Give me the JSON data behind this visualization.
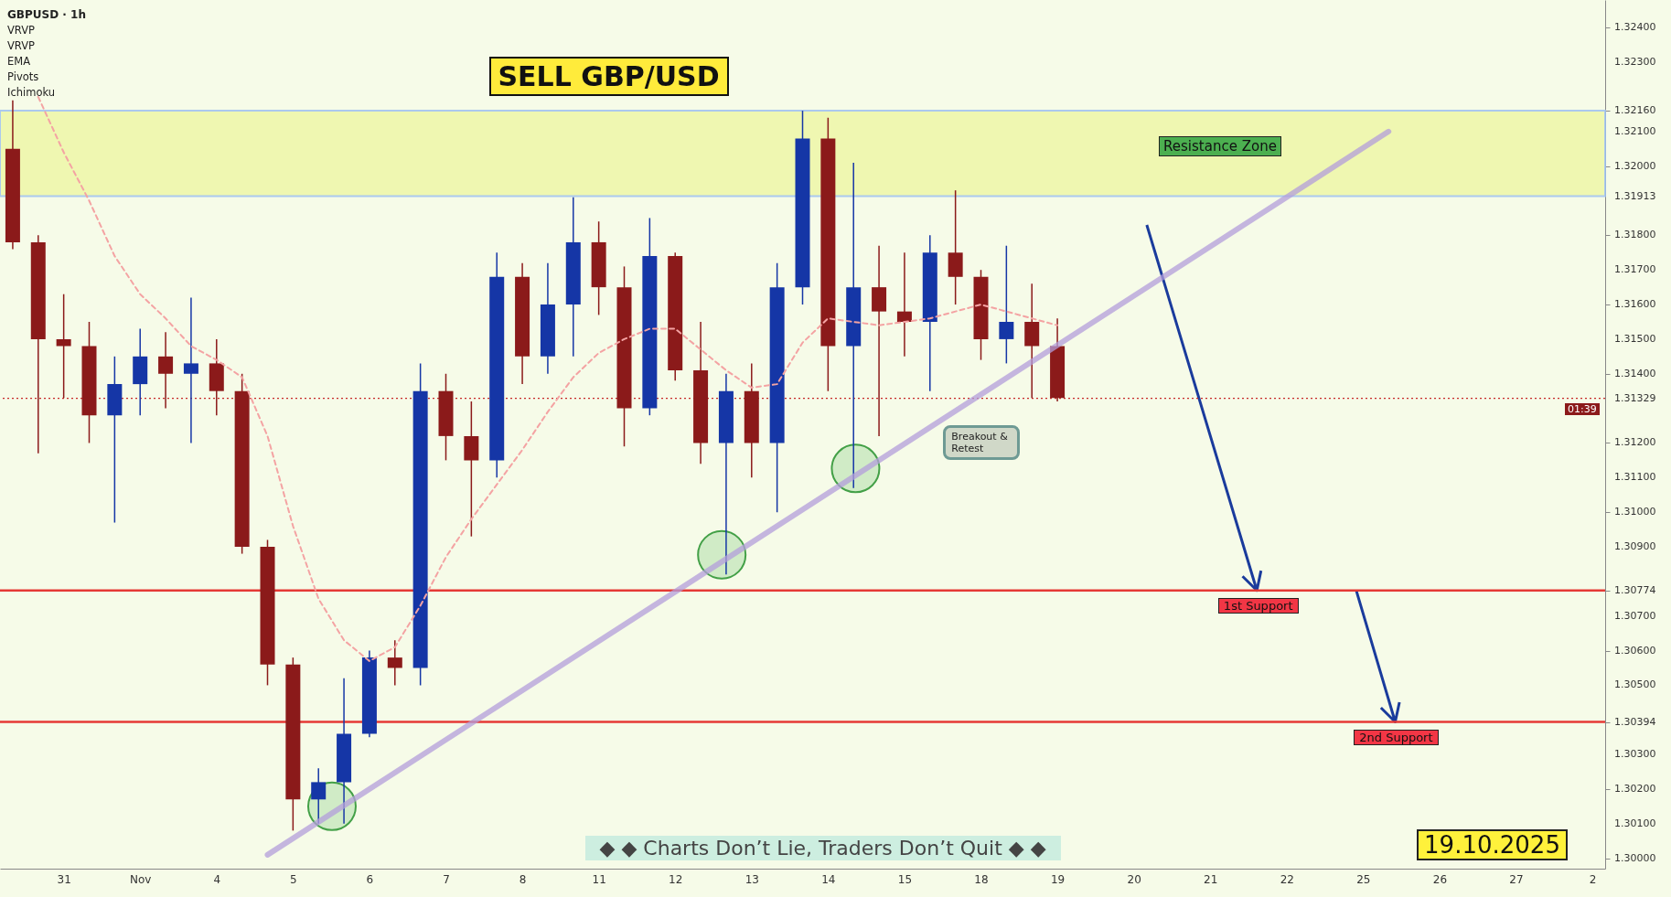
{
  "chart_data": {
    "type": "candlestick",
    "title": "SELL GBP/USD",
    "annotations": [
      "GBPUSD · 1h",
      "VRVP",
      "VRVP",
      "EMA",
      "Pivots",
      "Ichimoku",
      "Breakout & Retest",
      "◆  ◆  Charts Don’t Lie, Traders Don’t Quit  ◆  ◆",
      "19.10.2025",
      "01:39"
    ],
    "categories": [
      null,
      null,
      "31",
      null,
      null,
      "Nov",
      null,
      null,
      "4",
      null,
      null,
      "5",
      null,
      null,
      "6",
      null,
      null,
      "7",
      null,
      null,
      "8",
      null,
      null,
      "11",
      null,
      null,
      "12",
      null,
      null,
      "13",
      null,
      null,
      "14",
      null,
      null,
      "15",
      null,
      null,
      "18",
      null,
      null,
      "19",
      null,
      null,
      "20",
      null,
      null,
      "21",
      null,
      null,
      "22",
      null,
      null,
      "25",
      null,
      null,
      "26",
      null,
      null,
      "27",
      null,
      null,
      "2"
    ],
    "ohlc": [
      [
        1.3205,
        1.3219,
        1.3176,
        1.3178
      ],
      [
        1.3178,
        1.318,
        1.3117,
        1.315
      ],
      [
        1.315,
        1.3163,
        1.3133,
        1.3148
      ],
      [
        1.3148,
        1.3155,
        1.312,
        1.3128
      ],
      [
        1.3128,
        1.3145,
        1.3097,
        1.3137
      ],
      [
        1.3137,
        1.3153,
        1.3128,
        1.3145
      ],
      [
        1.3145,
        1.3152,
        1.313,
        1.314
      ],
      [
        1.314,
        1.3162,
        1.312,
        1.3143
      ],
      [
        1.3143,
        1.315,
        1.3128,
        1.3135
      ],
      [
        1.3135,
        1.314,
        1.3088,
        1.309
      ],
      [
        1.309,
        1.3092,
        1.305,
        1.3056
      ],
      [
        1.3056,
        1.3058,
        1.3008,
        1.3017
      ],
      [
        1.3017,
        1.3026,
        1.301,
        1.3022
      ],
      [
        1.3022,
        1.3052,
        1.301,
        1.3036
      ],
      [
        1.3036,
        1.306,
        1.3035,
        1.3058
      ],
      [
        1.3058,
        1.3063,
        1.305,
        1.3055
      ],
      [
        1.3055,
        1.3143,
        1.305,
        1.3135
      ],
      [
        1.3135,
        1.314,
        1.3115,
        1.3122
      ],
      [
        1.3122,
        1.3132,
        1.3093,
        1.3115
      ],
      [
        1.3115,
        1.3175,
        1.311,
        1.3168
      ],
      [
        1.3168,
        1.3172,
        1.3137,
        1.3145
      ],
      [
        1.3145,
        1.3172,
        1.314,
        1.316
      ],
      [
        1.316,
        1.3191,
        1.3145,
        1.3178
      ],
      [
        1.3178,
        1.3184,
        1.3157,
        1.3165
      ],
      [
        1.3165,
        1.3171,
        1.3119,
        1.313
      ],
      [
        1.313,
        1.3185,
        1.3128,
        1.3174
      ],
      [
        1.3174,
        1.3175,
        1.3138,
        1.3141
      ],
      [
        1.3141,
        1.3155,
        1.3114,
        1.312
      ],
      [
        1.312,
        1.314,
        1.3082,
        1.3135
      ],
      [
        1.3135,
        1.3143,
        1.311,
        1.312
      ],
      [
        1.312,
        1.3172,
        1.31,
        1.3165
      ],
      [
        1.3165,
        1.3216,
        1.316,
        1.3208
      ],
      [
        1.3208,
        1.3214,
        1.3135,
        1.3148
      ],
      [
        1.3148,
        1.3201,
        1.3107,
        1.3165
      ],
      [
        1.3165,
        1.3177,
        1.3122,
        1.3158
      ],
      [
        1.3158,
        1.3175,
        1.3145,
        1.3155
      ],
      [
        1.3155,
        1.318,
        1.3135,
        1.3175
      ],
      [
        1.3175,
        1.3193,
        1.316,
        1.3168
      ],
      [
        1.3168,
        1.317,
        1.3144,
        1.315
      ],
      [
        1.315,
        1.3177,
        1.3143,
        1.3155
      ],
      [
        1.3155,
        1.3166,
        1.3133,
        1.3148
      ],
      [
        1.3148,
        1.3156,
        1.3132,
        1.3133
      ],
      null,
      null,
      null,
      null,
      null,
      null,
      null,
      null,
      null,
      null,
      null,
      null,
      null,
      null,
      null,
      null,
      null,
      null,
      null,
      null,
      null
    ],
    "series": [
      {
        "type": "line",
        "color": "#f4a3a3",
        "line_style": "dashed",
        "values": [
          null,
          1.322,
          1.3204,
          1.319,
          1.3174,
          1.3163,
          1.3156,
          1.3148,
          1.3144,
          1.3139,
          1.3122,
          1.3096,
          1.3075,
          1.3063,
          1.3057,
          1.3061,
          1.3073,
          1.3087,
          1.3098,
          1.3108,
          1.3118,
          1.3129,
          1.3139,
          1.3146,
          1.315,
          1.3153,
          1.3153,
          1.3147,
          1.3141,
          1.3136,
          1.3137,
          1.3149,
          1.3156,
          1.3155,
          1.3154,
          1.3155,
          1.3156,
          1.3158,
          1.316,
          1.3158,
          1.3156,
          1.3154,
          null,
          null,
          null,
          null,
          null,
          null,
          null,
          null,
          null,
          null,
          null,
          null,
          null,
          null,
          null,
          null,
          null,
          null,
          null,
          null,
          null
        ]
      },
      {
        "type": "line",
        "color": "#b39ddb",
        "line_style": "solid",
        "values": [
          null,
          null,
          null,
          null,
          null,
          null,
          null,
          null,
          null,
          null,
          1.3001,
          null,
          null,
          null,
          null,
          null,
          null,
          null,
          null,
          null,
          null,
          null,
          null,
          null,
          null,
          null,
          null,
          null,
          null,
          null,
          null,
          null,
          null,
          null,
          null,
          null,
          null,
          null,
          null,
          null,
          null,
          null,
          null,
          null,
          null,
          null,
          null,
          null,
          null,
          null,
          null,
          null,
          null,
          null,
          1.321,
          null,
          null,
          null,
          null,
          null,
          null,
          null,
          null
        ]
      }
    ],
    "ref_lines": [
      {
        "axis": "y",
        "value": 1.30774,
        "label": "1st Support",
        "color": "#e53935"
      },
      {
        "axis": "y",
        "value": 1.30394,
        "label": "2nd Support",
        "color": "#e53935"
      },
      {
        "axis": "y",
        "value": 1.31329,
        "color": "#c62828",
        "line_style": "dotted"
      }
    ],
    "bands": [
      {
        "axis": "y",
        "from": 1.31913,
        "to": 1.3216,
        "label": "Resistance Zone",
        "color": "#eef7a8"
      }
    ],
    "ylim": [
      1.2997,
      1.3248
    ],
    "yticks": [
      {
        "value": 1.3,
        "label": "1.30000"
      },
      {
        "value": 1.301,
        "label": "1.30100"
      },
      {
        "value": 1.302,
        "label": "1.30200"
      },
      {
        "value": 1.303,
        "label": "1.30300"
      },
      {
        "value": 1.30394,
        "label": "1.30394"
      },
      {
        "value": 1.305,
        "label": "1.30500"
      },
      {
        "value": 1.306,
        "label": "1.30600"
      },
      {
        "value": 1.307,
        "label": "1.30700"
      },
      {
        "value": 1.30774,
        "label": "1.30774"
      },
      {
        "value": 1.309,
        "label": "1.30900"
      },
      {
        "value": 1.31,
        "label": "1.31000"
      },
      {
        "value": 1.311,
        "label": "1.31100"
      },
      {
        "value": 1.312,
        "label": "1.31200"
      },
      {
        "value": 1.31329,
        "label": "1.31329"
      },
      {
        "value": 1.314,
        "label": "1.31400"
      },
      {
        "value": 1.315,
        "label": "1.31500"
      },
      {
        "value": 1.316,
        "label": "1.31600"
      },
      {
        "value": 1.317,
        "label": "1.31700"
      },
      {
        "value": 1.318,
        "label": "1.31800"
      },
      {
        "value": 1.31913,
        "label": "1.31913"
      },
      {
        "value": 1.32,
        "label": "1.32000"
      },
      {
        "value": 1.321,
        "label": "1.32100"
      },
      {
        "value": 1.3216,
        "label": "1.32160"
      },
      {
        "value": 1.323,
        "label": "1.32300"
      },
      {
        "value": 1.324,
        "label": "1.32400"
      }
    ],
    "grid": false,
    "marker": "none"
  }
}
